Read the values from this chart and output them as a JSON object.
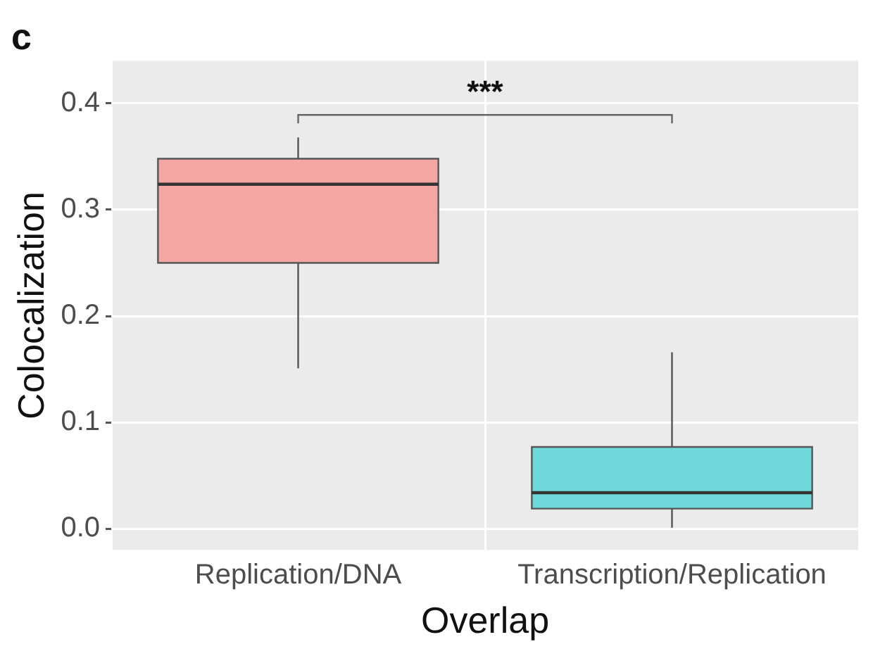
{
  "chart_data": {
    "type": "box",
    "title": "c",
    "xlabel": "Overlap",
    "ylabel": "Colocalization",
    "categories": [
      "Replication/DNA",
      "Transcription/Replication"
    ],
    "colors": [
      "#f4a6a2",
      "#6fd8db"
    ],
    "boxes": [
      {
        "low": 0.151,
        "q1": 0.25,
        "median": 0.324,
        "q3": 0.348,
        "high": 0.368
      },
      {
        "low": 0.001,
        "q1": 0.019,
        "median": 0.034,
        "q3": 0.077,
        "high": 0.166
      }
    ],
    "ylim": [
      -0.02,
      0.44
    ],
    "yticks": [
      {
        "value": 0,
        "label": "0.0"
      },
      0.1,
      0.2,
      0.3,
      0.4
    ],
    "grid": true,
    "legend": false,
    "annotations": [
      "***"
    ]
  }
}
